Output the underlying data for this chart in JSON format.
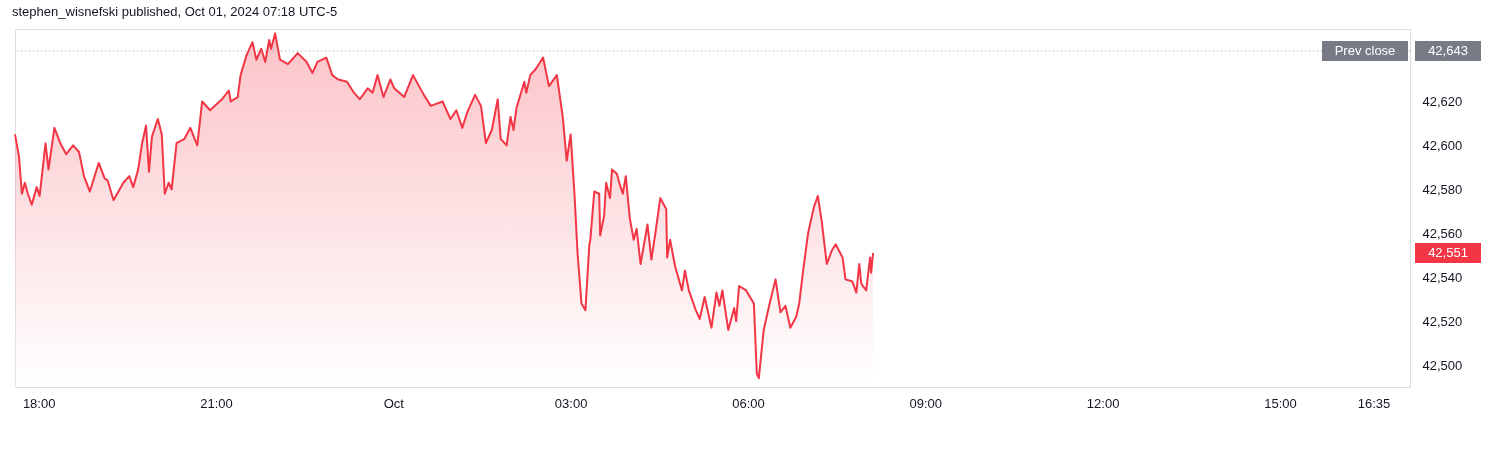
{
  "chart_data": {
    "type": "area",
    "title": "stephen_wisnefski published, Oct 01, 2024 07:18 UTC-5",
    "x": [
      "2024-09-30T17:36",
      "2024-09-30T17:40",
      "2024-09-30T17:43",
      "2024-09-30T17:46",
      "2024-09-30T17:49",
      "2024-09-30T17:53",
      "2024-09-30T17:58",
      "2024-09-30T18:01",
      "2024-09-30T18:05",
      "2024-09-30T18:07",
      "2024-09-30T18:10",
      "2024-09-30T18:16",
      "2024-09-30T18:22",
      "2024-09-30T18:28",
      "2024-09-30T18:35",
      "2024-09-30T18:41",
      "2024-09-30T18:46",
      "2024-09-30T18:52",
      "2024-09-30T19:01",
      "2024-09-30T19:07",
      "2024-09-30T19:10",
      "2024-09-30T19:16",
      "2024-09-30T19:26",
      "2024-09-30T19:32",
      "2024-09-30T19:36",
      "2024-09-30T19:41",
      "2024-09-30T19:45",
      "2024-09-30T19:49",
      "2024-09-30T19:52",
      "2024-09-30T19:55",
      "2024-09-30T20:01",
      "2024-09-30T20:05",
      "2024-09-30T20:08",
      "2024-09-30T20:12",
      "2024-09-30T20:15",
      "2024-09-30T20:20",
      "2024-09-30T20:28",
      "2024-09-30T20:34",
      "2024-09-30T20:41",
      "2024-09-30T20:46",
      "2024-09-30T20:54",
      "2024-09-30T21:06",
      "2024-09-30T21:13",
      "2024-09-30T21:15",
      "2024-09-30T21:22",
      "2024-09-30T21:25",
      "2024-09-30T21:31",
      "2024-09-30T21:37",
      "2024-09-30T21:41",
      "2024-09-30T21:46",
      "2024-09-30T21:50",
      "2024-09-30T21:54",
      "2024-09-30T21:56",
      "2024-09-30T22:00",
      "2024-09-30T22:05",
      "2024-09-30T22:13",
      "2024-09-30T22:23",
      "2024-09-30T22:32",
      "2024-09-30T22:38",
      "2024-09-30T22:43",
      "2024-09-30T22:52",
      "2024-09-30T22:58",
      "2024-09-30T23:04",
      "2024-09-30T23:13",
      "2024-09-30T23:20",
      "2024-09-30T23:26",
      "2024-09-30T23:34",
      "2024-09-30T23:39",
      "2024-09-30T23:44",
      "2024-09-30T23:50",
      "2024-09-30T23:57",
      "2024-10-01T00:01",
      "2024-10-01T00:11",
      "2024-10-01T00:20",
      "2024-10-01T00:31",
      "2024-10-01T00:38",
      "2024-10-01T00:50",
      "2024-10-01T00:58",
      "2024-10-01T01:04",
      "2024-10-01T01:10",
      "2024-10-01T01:15",
      "2024-10-01T01:23",
      "2024-10-01T01:29",
      "2024-10-01T01:34",
      "2024-10-01T01:40",
      "2024-10-01T01:46",
      "2024-10-01T01:49",
      "2024-10-01T01:55",
      "2024-10-01T01:59",
      "2024-10-01T02:02",
      "2024-10-01T02:05",
      "2024-10-01T02:13",
      "2024-10-01T02:15",
      "2024-10-01T02:19",
      "2024-10-01T02:25",
      "2024-10-01T02:32",
      "2024-10-01T02:38",
      "2024-10-01T02:46",
      "2024-10-01T02:52",
      "2024-10-01T02:56",
      "2024-10-01T03:00",
      "2024-10-01T03:04",
      "2024-10-01T03:07",
      "2024-10-01T03:11",
      "2024-10-01T03:15",
      "2024-10-01T03:19",
      "2024-10-01T03:20",
      "2024-10-01T03:24",
      "2024-10-01T03:29",
      "2024-10-01T03:30",
      "2024-10-01T03:34",
      "2024-10-01T03:36",
      "2024-10-01T03:40",
      "2024-10-01T03:42",
      "2024-10-01T03:47",
      "2024-10-01T03:50",
      "2024-10-01T03:53",
      "2024-10-01T03:56",
      "2024-10-01T04:00",
      "2024-10-01T04:04",
      "2024-10-01T04:07",
      "2024-10-01T04:11",
      "2024-10-01T04:18",
      "2024-10-01T04:22",
      "2024-10-01T04:26",
      "2024-10-01T04:31",
      "2024-10-01T04:37",
      "2024-10-01T04:38",
      "2024-10-01T04:41",
      "2024-10-01T04:46",
      "2024-10-01T04:53",
      "2024-10-01T04:56",
      "2024-10-01T05:00",
      "2024-10-01T05:07",
      "2024-10-01T05:11",
      "2024-10-01T05:16",
      "2024-10-01T05:23",
      "2024-10-01T05:28",
      "2024-10-01T05:31",
      "2024-10-01T05:34",
      "2024-10-01T05:40",
      "2024-10-01T05:46",
      "2024-10-01T05:48",
      "2024-10-01T05:51",
      "2024-10-01T05:58",
      "2024-10-01T06:06",
      "2024-10-01T06:09",
      "2024-10-01T06:11",
      "2024-10-01T06:16",
      "2024-10-01T06:20",
      "2024-10-01T06:22",
      "2024-10-01T06:28",
      "2024-10-01T06:33",
      "2024-10-01T06:38",
      "2024-10-01T06:43",
      "2024-10-01T06:49",
      "2024-10-01T06:52",
      "2024-10-01T06:56",
      "2024-10-01T07:01",
      "2024-10-01T07:07",
      "2024-10-01T07:11",
      "2024-10-01T07:15",
      "2024-10-01T07:20",
      "2024-10-01T07:25",
      "2024-10-01T07:29",
      "2024-10-01T07:36",
      "2024-10-01T07:39",
      "2024-10-01T07:46",
      "2024-10-01T07:50",
      "2024-10-01T07:53",
      "2024-10-01T07:55",
      "2024-10-01T08:00",
      "2024-10-01T08:04",
      "2024-10-01T08:05",
      "2024-10-01T08:07"
    ],
    "series": [
      {
        "color": "#f23645",
        "values": [
          42605,
          42595,
          42578,
          42583,
          42578,
          42573,
          42581,
          42577,
          42593,
          42601,
          42589,
          42608,
          42601,
          42596,
          42600,
          42597,
          42586,
          42579,
          42592,
          42585,
          42584,
          42575,
          42583,
          42586,
          42581,
          42589,
          42601,
          42609,
          42588,
          42604,
          42612,
          42605,
          42578,
          42583,
          42580,
          42601,
          42603,
          42608,
          42600,
          42620,
          42616,
          42621,
          42625,
          42620,
          42622,
          42632,
          42641,
          42647,
          42639,
          42644,
          42638,
          42648,
          42644,
          42651,
          42639,
          42637,
          42642,
          42638,
          42633,
          42638,
          42640,
          42632,
          42630,
          42629,
          42624,
          42621,
          42626,
          42624,
          42632,
          42622,
          42630,
          42626,
          42622,
          42632,
          42623,
          42618,
          42620,
          42612,
          42616,
          42608,
          42615,
          42623,
          42618,
          42601,
          42607,
          42621,
          42603,
          42600,
          42613,
          42607,
          42617,
          42629,
          42624,
          42632,
          42635,
          42640,
          42627,
          42632,
          42613,
          42593,
          42605,
          42577,
          42551,
          42528,
          42525,
          42555,
          42557,
          42579,
          42578,
          42559,
          42568,
          42583,
          42576,
          42589,
          42587,
          42582,
          42578,
          42586,
          42567,
          42557,
          42562,
          42546,
          42564,
          42548,
          42560,
          42576,
          42571,
          42549,
          42557,
          42545,
          42534,
          42543,
          42534,
          42525,
          42521,
          42531,
          42517,
          42533,
          42527,
          42534,
          42516,
          42526,
          42520,
          42536,
          42534,
          42528,
          42496,
          42494,
          42516,
          42524,
          42528,
          42539,
          42524,
          42527,
          42517,
          42522,
          42528,
          42543,
          42560,
          42572,
          42577,
          42565,
          42546,
          42552,
          42555,
          42549,
          42539,
          42538,
          42533,
          42546,
          42537,
          42534,
          42549,
          42542,
          42551
        ]
      }
    ],
    "xlim": [
      "2024-09-30T17:36",
      "2024-10-01T17:12"
    ],
    "xticks": [
      {
        "value": "2024-09-30T18:00",
        "label": "18:00"
      },
      {
        "value": "2024-09-30T21:00",
        "label": "21:00"
      },
      {
        "value": "2024-10-01T00:00",
        "label": "Oct"
      },
      {
        "value": "2024-10-01T03:00",
        "label": "03:00"
      },
      {
        "value": "2024-10-01T06:00",
        "label": "06:00"
      },
      {
        "value": "2024-10-01T09:00",
        "label": "09:00"
      },
      {
        "value": "2024-10-01T12:00",
        "label": "12:00"
      },
      {
        "value": "2024-10-01T15:00",
        "label": "15:00"
      },
      {
        "value": "2024-10-01T16:35",
        "label": "16:35"
      }
    ],
    "ylim": [
      42490,
      42653
    ],
    "yticks": [
      {
        "value": 42500,
        "label": "42,500"
      },
      {
        "value": 42520,
        "label": "42,520"
      },
      {
        "value": 42540,
        "label": "42,540"
      },
      {
        "value": 42560,
        "label": "42,560"
      },
      {
        "value": 42580,
        "label": "42,580"
      },
      {
        "value": 42600,
        "label": "42,600"
      },
      {
        "value": 42620,
        "label": "42,620"
      }
    ],
    "ref_lines": [
      {
        "axis": "y",
        "value": 42643,
        "label": "Prev close",
        "color": "#9598a1",
        "line_style": "dotted"
      }
    ],
    "annotations": [
      {
        "text": "42,643",
        "x": "2024-10-01T17:12",
        "y": 42643
      },
      "42,551"
    ]
  }
}
